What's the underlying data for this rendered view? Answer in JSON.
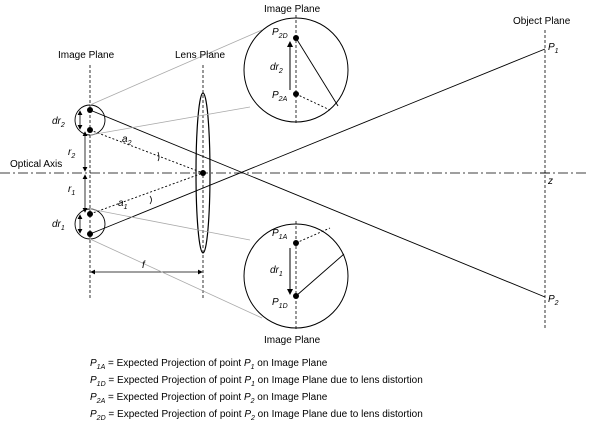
{
  "labels": {
    "image_plane_left": "Image Plane",
    "lens_plane": "Lens Plane",
    "image_plane_top": "Image Plane",
    "image_plane_bottom": "Image Plane",
    "object_plane": "Object Plane",
    "optical_axis": "Optical Axis",
    "z": "z",
    "f": "f",
    "dr2": "dr",
    "dr2_sub": "2",
    "dr1": "dr",
    "dr1_sub": "1",
    "r2": "r",
    "r2_sub": "2",
    "r1": "r",
    "r1_sub": "1",
    "a2": "a",
    "a2_sub": "2",
    "a1": "a",
    "a1_sub": "1",
    "p1": "P",
    "p1_sub": "1",
    "p2": "P",
    "p2_sub": "2",
    "p2d": "P",
    "p2d_sub": "2D",
    "p2a": "P",
    "p2a_sub": "2A",
    "p1a": "P",
    "p1a_sub": "1A",
    "p1d": "P",
    "p1d_sub": "1D",
    "zoom_dr2": "dr",
    "zoom_dr2_sub": "2",
    "zoom_dr1": "dr",
    "zoom_dr1_sub": "1"
  },
  "legend": [
    {
      "sym": "P",
      "sub": "1A",
      "text": " = Expected Projection of point ",
      "pt": "P",
      "pt_sub": "1",
      "tail": " on Image Plane"
    },
    {
      "sym": "P",
      "sub": "1D",
      "text": " = Expected Projection of point ",
      "pt": "P",
      "pt_sub": "1",
      "tail": " on Image Plane due to lens distortion"
    },
    {
      "sym": "P",
      "sub": "2A",
      "text": " = Expected Projection of point  ",
      "pt": "P",
      "pt_sub": "2",
      "tail": " on Image Plane"
    },
    {
      "sym": "P",
      "sub": "2D",
      "text": " = Expected Projection of point ",
      "pt": "P",
      "pt_sub": "2",
      "tail": " on Image Plane due to lens distortion"
    }
  ]
}
